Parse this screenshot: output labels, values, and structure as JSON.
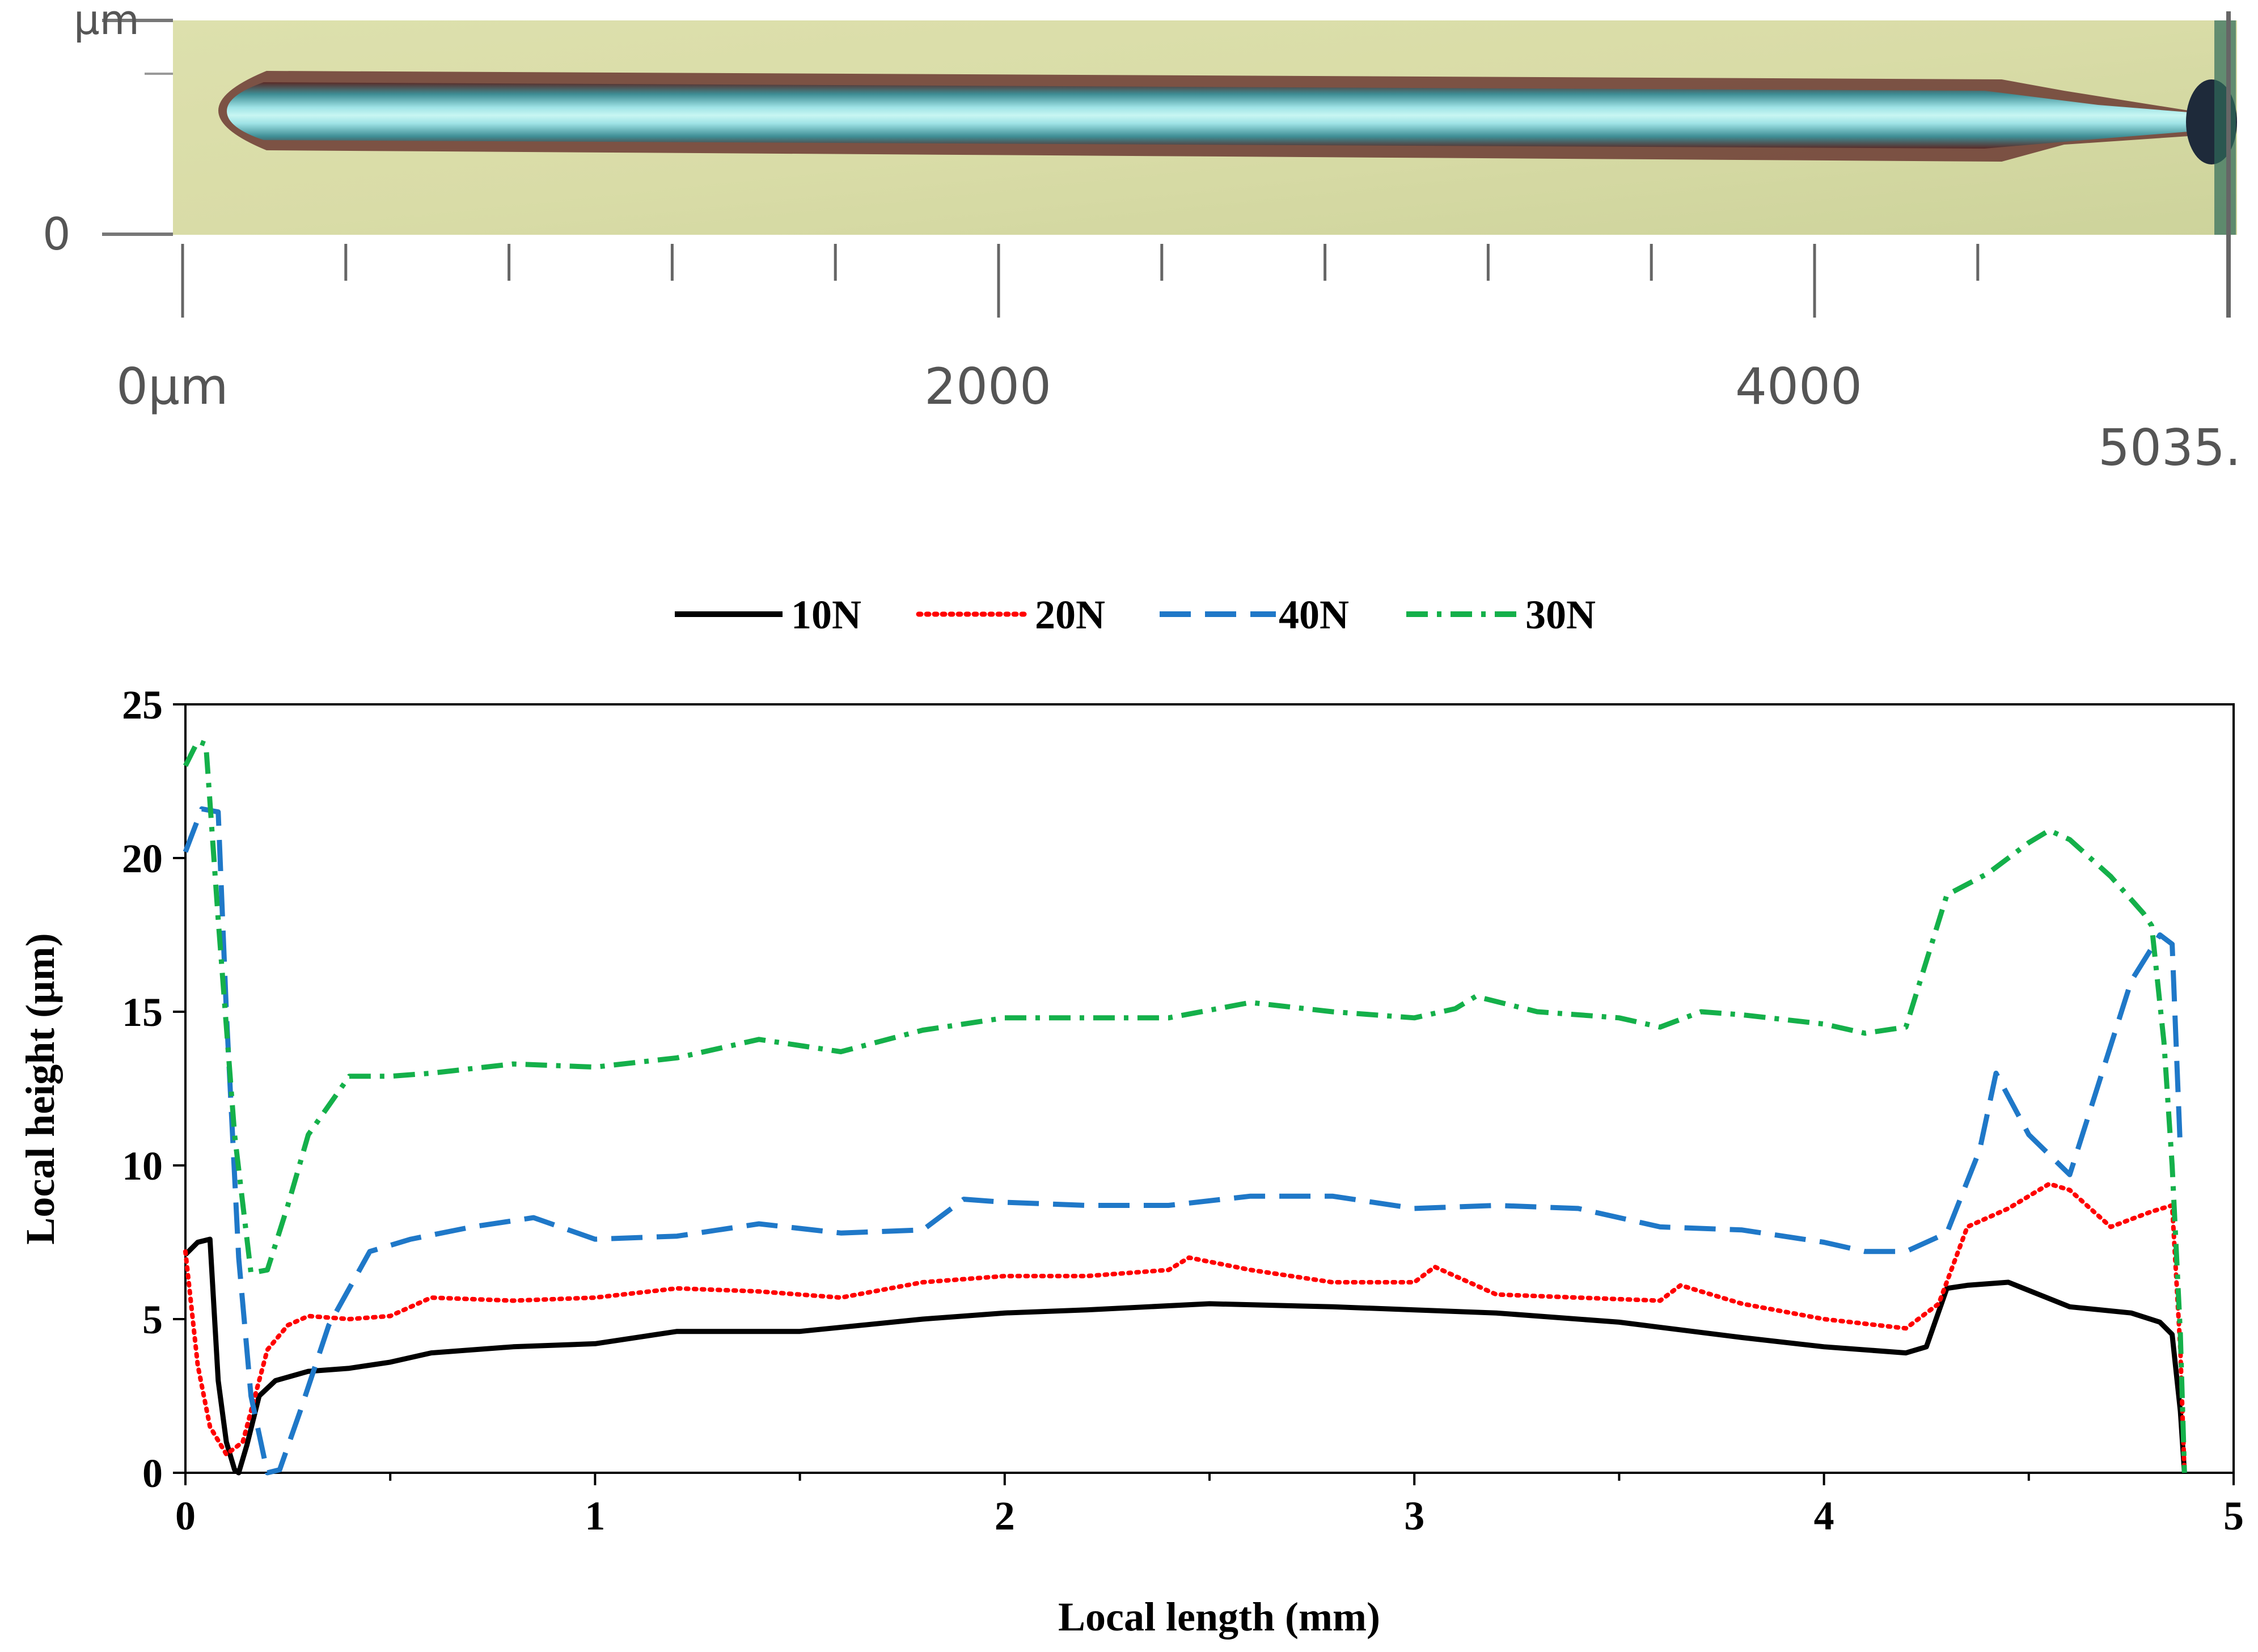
{
  "micrograph": {
    "y_axis_top_label": "µm",
    "y_axis_zero_label": "0",
    "x_labels": [
      "0µm",
      "2000",
      "4000"
    ],
    "x_end_label": "5035.",
    "colors": {
      "background": "#d9dca7",
      "groove_center": "#b9f1f0",
      "groove_mid": "#4bb3b6",
      "groove_edge": "#5a2a27"
    }
  },
  "chart_data": {
    "type": "line",
    "xlabel": "Local length (mm)",
    "ylabel": "Local height  (µm)",
    "xlim": [
      0,
      5
    ],
    "ylim": [
      0,
      25
    ],
    "xticks": [
      "0",
      "1",
      "2",
      "3",
      "4",
      "5"
    ],
    "yticks": [
      "0",
      "5",
      "10",
      "15",
      "20",
      "25"
    ],
    "legend_position": "top",
    "series": [
      {
        "name": "10N",
        "color": "#000000",
        "dash": "solid",
        "x": [
          0,
          0.03,
          0.06,
          0.08,
          0.1,
          0.12,
          0.13,
          0.15,
          0.18,
          0.22,
          0.3,
          0.4,
          0.5,
          0.6,
          0.8,
          1.0,
          1.2,
          1.5,
          1.8,
          2.0,
          2.2,
          2.5,
          2.8,
          3.0,
          3.2,
          3.5,
          3.8,
          4.0,
          4.2,
          4.25,
          4.3,
          4.35,
          4.45,
          4.6,
          4.75,
          4.82,
          4.85,
          4.87,
          4.88
        ],
        "values": [
          7.1,
          7.5,
          7.6,
          3.0,
          1.0,
          0.1,
          0.0,
          0.9,
          2.5,
          3.0,
          3.3,
          3.4,
          3.6,
          3.9,
          4.1,
          4.2,
          4.6,
          4.6,
          5.0,
          5.2,
          5.3,
          5.5,
          5.4,
          5.3,
          5.2,
          4.9,
          4.4,
          4.1,
          3.9,
          4.1,
          6.0,
          6.1,
          6.2,
          5.4,
          5.2,
          4.9,
          4.5,
          2.0,
          0.0
        ]
      },
      {
        "name": "20N",
        "color": "#ff0000",
        "dash": "dotted",
        "x": [
          0,
          0.03,
          0.06,
          0.1,
          0.14,
          0.17,
          0.2,
          0.25,
          0.3,
          0.4,
          0.5,
          0.6,
          0.8,
          1.0,
          1.2,
          1.4,
          1.6,
          1.8,
          2.0,
          2.2,
          2.4,
          2.45,
          2.6,
          2.8,
          3.0,
          3.05,
          3.2,
          3.4,
          3.6,
          3.65,
          3.8,
          4.0,
          4.2,
          4.28,
          4.35,
          4.45,
          4.55,
          4.6,
          4.7,
          4.8,
          4.85,
          4.87,
          4.88
        ],
        "values": [
          7.2,
          3.5,
          1.5,
          0.6,
          1.0,
          2.5,
          4.0,
          4.8,
          5.1,
          5.0,
          5.1,
          5.7,
          5.6,
          5.7,
          6.0,
          5.9,
          5.7,
          6.2,
          6.4,
          6.4,
          6.6,
          7.0,
          6.6,
          6.2,
          6.2,
          6.7,
          5.8,
          5.7,
          5.6,
          6.1,
          5.5,
          5.0,
          4.7,
          5.5,
          8.0,
          8.6,
          9.4,
          9.2,
          8.0,
          8.5,
          8.7,
          4.0,
          0.0
        ]
      },
      {
        "name": "40N",
        "color": "#1f78c8",
        "dash": "dashed",
        "x": [
          0,
          0.04,
          0.08,
          0.1,
          0.13,
          0.16,
          0.2,
          0.23,
          0.28,
          0.35,
          0.45,
          0.55,
          0.7,
          0.85,
          1.0,
          1.2,
          1.4,
          1.6,
          1.8,
          1.9,
          2.0,
          2.2,
          2.4,
          2.6,
          2.8,
          3.0,
          3.2,
          3.4,
          3.6,
          3.8,
          4.0,
          4.1,
          4.2,
          4.3,
          4.38,
          4.42,
          4.5,
          4.6,
          4.75,
          4.82,
          4.85,
          4.87
        ],
        "values": [
          20.2,
          21.6,
          21.5,
          15.0,
          7.0,
          2.5,
          0.0,
          0.1,
          2.0,
          4.8,
          7.2,
          7.6,
          8.0,
          8.3,
          7.6,
          7.7,
          8.1,
          7.8,
          7.9,
          8.9,
          8.8,
          8.7,
          8.7,
          9.0,
          9.0,
          8.6,
          8.7,
          8.6,
          8.0,
          7.9,
          7.5,
          7.2,
          7.2,
          7.8,
          10.5,
          13.0,
          11.0,
          9.7,
          16.0,
          17.5,
          17.2,
          10.5
        ]
      },
      {
        "name": "30N",
        "color": "#14b04a",
        "dash": "dashdot",
        "x": [
          0,
          0.03,
          0.05,
          0.08,
          0.12,
          0.16,
          0.2,
          0.25,
          0.3,
          0.4,
          0.5,
          0.6,
          0.8,
          1.0,
          1.2,
          1.4,
          1.6,
          1.8,
          2.0,
          2.2,
          2.4,
          2.6,
          2.8,
          3.0,
          3.1,
          3.15,
          3.3,
          3.5,
          3.6,
          3.7,
          3.8,
          4.0,
          4.1,
          4.2,
          4.3,
          4.4,
          4.5,
          4.55,
          4.6,
          4.7,
          4.78,
          4.8,
          4.83,
          4.85,
          4.87,
          4.88
        ],
        "values": [
          23.0,
          23.8,
          23.7,
          18.0,
          11.0,
          6.5,
          6.6,
          8.7,
          11.0,
          12.9,
          12.9,
          13.0,
          13.3,
          13.2,
          13.5,
          14.1,
          13.7,
          14.4,
          14.8,
          14.8,
          14.8,
          15.3,
          15.0,
          14.8,
          15.1,
          15.5,
          15.0,
          14.8,
          14.5,
          15.0,
          14.9,
          14.6,
          14.3,
          14.5,
          18.8,
          19.5,
          20.5,
          20.9,
          20.6,
          19.4,
          18.2,
          17.8,
          14.0,
          10.0,
          4.5,
          0.0
        ]
      }
    ]
  }
}
